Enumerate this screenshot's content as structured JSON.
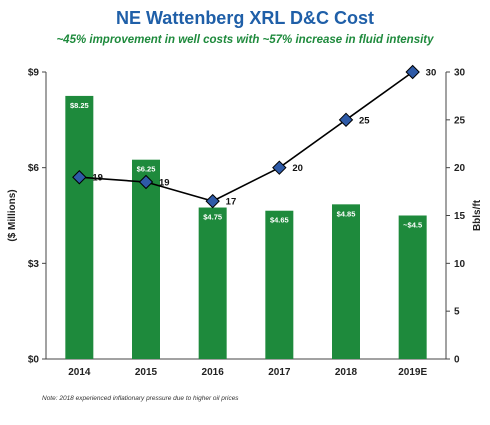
{
  "chart_data": {
    "type": "bar",
    "title": "NE Wattenberg XRL D&C Cost",
    "subtitle": "~45% improvement in well costs with ~57% increase in fluid intensity",
    "categories": [
      "2014",
      "2015",
      "2016",
      "2017",
      "2018",
      "2019E"
    ],
    "ylabel": "($ Millions)",
    "ylim": [
      0,
      9
    ],
    "yticks": [
      "$0",
      "$3",
      "$6",
      "$9"
    ],
    "y2label": "Bbls/ft",
    "y2lim": [
      0,
      30
    ],
    "y2ticks": [
      "0",
      "5",
      "10",
      "15",
      "20",
      "25",
      "30"
    ],
    "series": [
      {
        "type": "bar",
        "values": [
          8.25,
          6.25,
          4.75,
          4.65,
          4.85,
          4.5
        ],
        "labels": [
          "$8.25",
          "$6.25",
          "$4.75",
          "$4.65",
          "$4.85",
          "~$4.5"
        ],
        "color": "#1e8a3c",
        "axis": "left"
      },
      {
        "type": "line",
        "values": [
          19,
          18.5,
          16.5,
          20,
          25,
          30
        ],
        "labels": [
          "19",
          "19",
          "17",
          "20",
          "25",
          "30"
        ],
        "color": "#000000",
        "marker_color": "#2e5aa7",
        "axis": "right"
      }
    ],
    "grid": false,
    "note": "Note: 2018 experienced inflationary pressure due to higher oil prices"
  }
}
